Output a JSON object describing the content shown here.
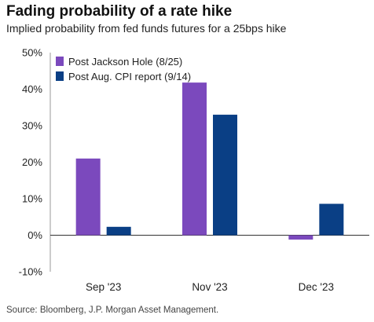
{
  "header": {
    "title": "Fading probability of a rate hike",
    "subtitle": "Implied probability from fed funds futures for a 25bps hike"
  },
  "footer": {
    "source": "Source: Bloomberg, J.P. Morgan Asset Management."
  },
  "chart_data": {
    "type": "bar",
    "categories": [
      "Sep '23",
      "Nov '23",
      "Dec '23"
    ],
    "series": [
      {
        "name": "Post Jackson Hole (8/25)",
        "color": "#7b49bd",
        "values": [
          21,
          41.8,
          -1.2
        ]
      },
      {
        "name": "Post Aug. CPI report (9/14)",
        "color": "#0a3f85",
        "values": [
          2.3,
          33,
          8.6
        ]
      }
    ],
    "ylim": [
      -10,
      50
    ],
    "yticks": [
      -10,
      0,
      10,
      20,
      30,
      40,
      50
    ],
    "ytick_labels": [
      "-10%",
      "0%",
      "10%",
      "20%",
      "30%",
      "40%",
      "50%"
    ],
    "legend_position": "top-left",
    "grid": false
  }
}
